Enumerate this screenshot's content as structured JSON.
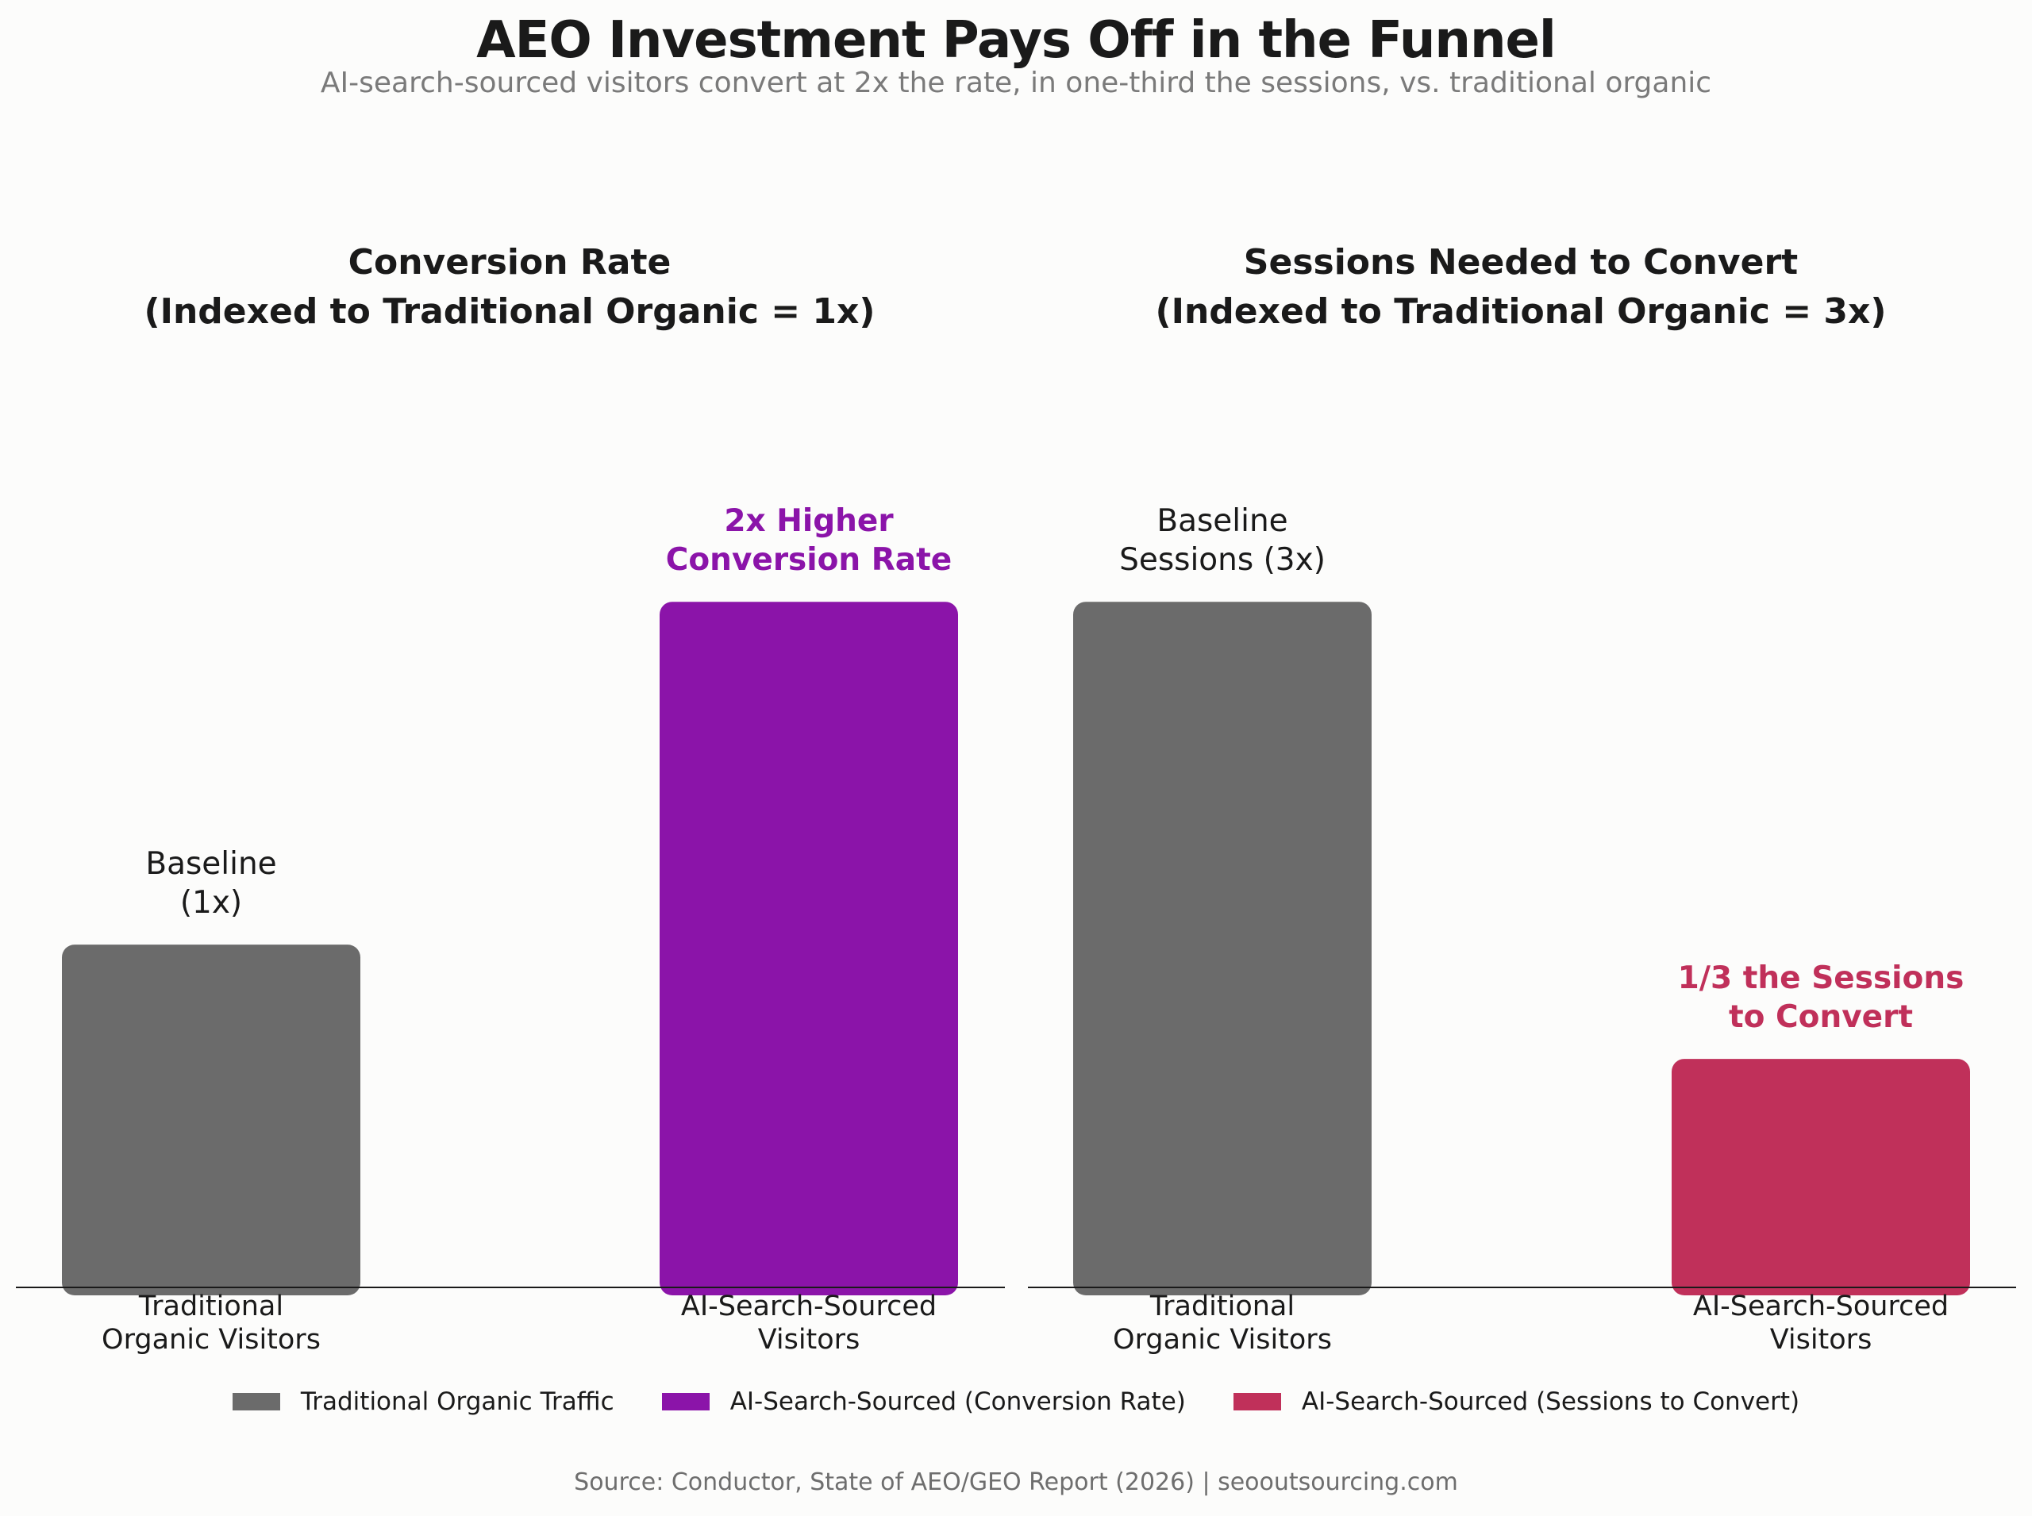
{
  "title": "AEO Investment Pays Off in the Funnel",
  "subtitle": "AI-search-sourced visitors convert at 2x the rate, in one-third the sessions, vs. traditional organic",
  "colors": {
    "traditional": "#6b6b6b",
    "ai_conversion": "#8b14a9",
    "ai_sessions": "#c0305a"
  },
  "chart_data": [
    {
      "type": "bar",
      "title_lines": [
        "Conversion Rate",
        "(Indexed to Traditional Organic = 1x)"
      ],
      "categories": [
        [
          "Traditional",
          "Organic Visitors"
        ],
        [
          "AI-Search-Sourced",
          "Visitors"
        ]
      ],
      "values": [
        1,
        2
      ],
      "ylim": [
        0,
        2.1
      ],
      "bar_colors": [
        "#6b6b6b",
        "#8b14a9"
      ],
      "data_labels": [
        {
          "lines": [
            "Baseline",
            "(1x)"
          ],
          "color": "#1a1a1a",
          "bold": false
        },
        {
          "lines": [
            "2x Higher",
            "Conversion Rate"
          ],
          "color": "#8b14a9",
          "bold": true
        }
      ]
    },
    {
      "type": "bar",
      "title_lines": [
        "Sessions Needed to Convert",
        "(Indexed to Traditional Organic = 3x)"
      ],
      "categories": [
        [
          "Traditional",
          "Organic Visitors"
        ],
        [
          "AI-Search-Sourced",
          "Visitors"
        ]
      ],
      "values": [
        3,
        1
      ],
      "ylim": [
        0,
        3.15
      ],
      "bar_colors": [
        "#6b6b6b",
        "#c0305a"
      ],
      "data_labels": [
        {
          "lines": [
            "Baseline",
            "Sessions (3x)"
          ],
          "color": "#1a1a1a",
          "bold": false
        },
        {
          "lines": [
            "1/3 the Sessions",
            "to Convert"
          ],
          "color": "#c0305a",
          "bold": true
        }
      ]
    }
  ],
  "legend": [
    {
      "label": "Traditional Organic Traffic",
      "color": "#6b6b6b"
    },
    {
      "label": "AI-Search-Sourced (Conversion Rate)",
      "color": "#8b14a9"
    },
    {
      "label": "AI-Search-Sourced (Sessions to Convert)",
      "color": "#c0305a"
    }
  ],
  "source": "Source: Conductor, State of AEO/GEO Report (2026)  |  seooutsourcing.com"
}
